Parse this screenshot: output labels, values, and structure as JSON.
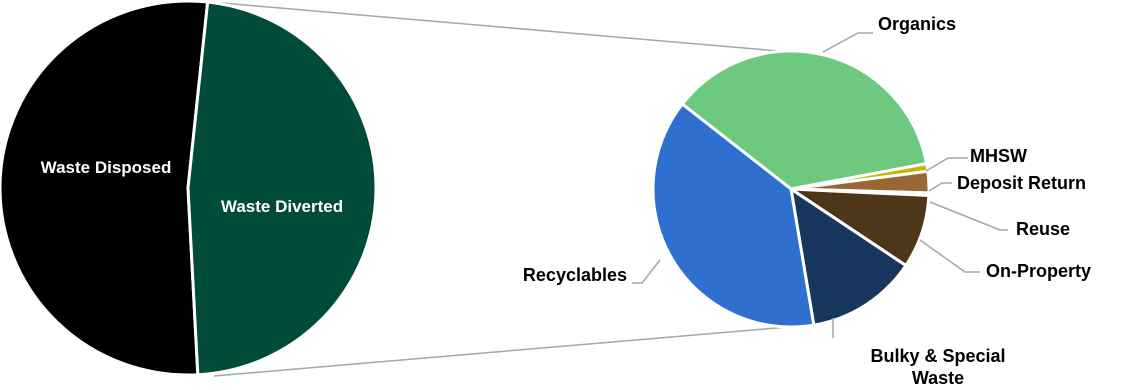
{
  "chart_data": [
    {
      "type": "pie",
      "title": "",
      "slices": [
        {
          "label": "Waste Disposed",
          "value": 52.5,
          "color": "#000000"
        },
        {
          "label": "Waste Diverted",
          "value": 47.5,
          "color": "#004B3A"
        }
      ]
    },
    {
      "type": "pie",
      "title": "",
      "slices": [
        {
          "label": "Organics",
          "value": 36.5,
          "color": "#6CC97F"
        },
        {
          "label": "MHSW",
          "value": 0.9,
          "color": "#C9B500"
        },
        {
          "label": "Deposit Return",
          "value": 2.5,
          "color": "#9B6636"
        },
        {
          "label": "Reuse",
          "value": 0.3,
          "color": "#C08A55"
        },
        {
          "label": "On-Property",
          "value": 8.6,
          "color": "#4E3618"
        },
        {
          "label": "Bulky & Special Waste",
          "value": 13.0,
          "color": "#17375E"
        },
        {
          "label": "Recyclables",
          "value": 38.2,
          "color": "#2F6FCF"
        }
      ],
      "leader_color": "#a6a6a6",
      "connector_color": "#a6a6a6"
    }
  ]
}
